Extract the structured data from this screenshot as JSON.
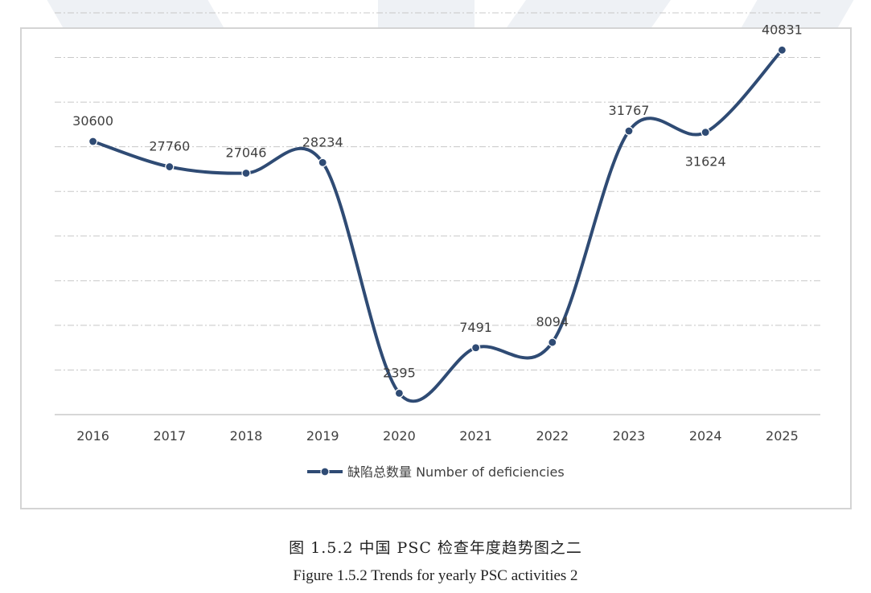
{
  "chart_data": {
    "type": "line",
    "categories": [
      "2016",
      "2017",
      "2018",
      "2019",
      "2020",
      "2021",
      "2022",
      "2023",
      "2024",
      "2025"
    ],
    "series": [
      {
        "name": "缺陷总数量 Number of deficiencies",
        "values": [
          30600,
          27760,
          27046,
          28234,
          2395,
          7491,
          8094,
          31767,
          31624,
          40831
        ],
        "color": "#2f4b74"
      }
    ],
    "ylim": [
      0,
      45000
    ],
    "grid": true,
    "gridline_style": "dash-dot",
    "smooth": true,
    "data_labels": true,
    "legend_position": "bottom",
    "y_tick_labels_visible": false
  },
  "caption": {
    "chinese": "图 1.5.2 中国 PSC 检查年度趋势图之二",
    "english": "Figure 1.5.2 Trends for yearly PSC activities 2"
  },
  "colors": {
    "line": "#2f4b74",
    "grid": "#c8c8c8",
    "axis": "#bfbfbf",
    "text": "#404040",
    "frame": "#d4d4d4",
    "watermark": "#eef1f5"
  }
}
